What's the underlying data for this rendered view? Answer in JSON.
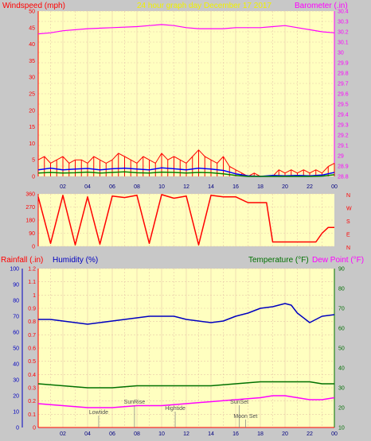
{
  "header": {
    "windspeed_label": "Windspeed (mph)",
    "title": "24 hour graph day   December 17 2017",
    "barometer_label": "Barometer (.in)"
  },
  "footer": {
    "rainfall_label": "Rainfall (.in)",
    "humidity_label": "Humidity (%)",
    "temperature_label": "Temperature (°F)",
    "dewpoint_label": "Dew Point (°F)"
  },
  "events": {
    "lowtide": "Lowtide",
    "sunrise": "SunRise",
    "hightide": "Hightide",
    "sunset": "SunSet",
    "moonset": "Moon Set"
  },
  "colors": {
    "panel_bg": "#ffffc0",
    "grid": "#e8c8a8",
    "windspeed": "#ff0000",
    "wind_avg": "#0000ff",
    "wind_low": "#008000",
    "barometer": "#ff00ff",
    "direction": "#ff0000",
    "humidity": "#0000c0",
    "temperature": "#007000",
    "dewpoint": "#ff00ff",
    "yellow_title": "#f0f000"
  },
  "chart_data": [
    {
      "type": "line",
      "panel": "wind_barometer",
      "x_ticks": [
        "02",
        "04",
        "06",
        "08",
        "10",
        "12",
        "14",
        "16",
        "18",
        "20",
        "22",
        "00"
      ],
      "y_left": {
        "label": "Windspeed (mph)",
        "ylim": [
          0,
          50
        ],
        "ticks": [
          0,
          5,
          10,
          15,
          20,
          25,
          30,
          35,
          40,
          45,
          50
        ]
      },
      "y_right": {
        "label": "Barometer (.in)",
        "ylim": [
          28.8,
          30.4
        ],
        "ticks": [
          "28.8",
          "28.9",
          "29",
          "29.1",
          "29.2",
          "29.3",
          "29.4",
          "29.5",
          "29.6",
          "29.7",
          "29.8",
          "29.9",
          "30",
          "30.1",
          "30.2",
          "30.3",
          "30.4"
        ]
      },
      "barometer": {
        "name": "Barometer",
        "x": [
          0,
          1,
          2,
          4,
          6,
          8,
          9,
          10,
          11,
          12,
          13,
          14,
          15,
          16,
          17,
          18,
          19,
          20,
          21,
          22,
          23,
          24
        ],
        "values": [
          30.18,
          30.19,
          30.21,
          30.23,
          30.24,
          30.25,
          30.26,
          30.27,
          30.26,
          30.24,
          30.23,
          30.23,
          30.23,
          30.24,
          30.24,
          30.24,
          30.25,
          30.26,
          30.24,
          30.22,
          30.2,
          30.19
        ]
      },
      "windspeed_gust": {
        "name": "Gust",
        "x": [
          0,
          0.5,
          1,
          1.5,
          2,
          2.5,
          3,
          3.5,
          4,
          4.5,
          5,
          5.5,
          6,
          6.5,
          7,
          7.5,
          8,
          8.5,
          9,
          9.5,
          10,
          10.5,
          11,
          11.5,
          12,
          12.5,
          13,
          13.5,
          14,
          14.5,
          15,
          15.5,
          16,
          16.5,
          17,
          17.5,
          18,
          18.5,
          19,
          19.5,
          20,
          20.5,
          21,
          21.5,
          22,
          22.5,
          23,
          23.5,
          24
        ],
        "values": [
          5,
          6,
          4,
          5,
          6,
          4,
          5,
          5,
          4,
          6,
          5,
          4,
          5,
          7,
          6,
          5,
          4,
          6,
          5,
          4,
          7,
          5,
          6,
          5,
          4,
          6,
          8,
          6,
          5,
          4,
          6,
          3,
          2,
          1,
          0,
          1,
          0,
          0,
          0,
          2,
          1,
          2,
          1,
          2,
          1,
          2,
          1,
          3,
          4
        ]
      },
      "windspeed_avg": {
        "name": "Average",
        "x": [
          0,
          1,
          2,
          3,
          4,
          5,
          6,
          7,
          8,
          9,
          10,
          11,
          12,
          13,
          14,
          15,
          16,
          17,
          18,
          19,
          20,
          21,
          22,
          23,
          24
        ],
        "values": [
          2,
          2.5,
          2,
          2.2,
          2.4,
          2,
          2.3,
          2.5,
          2.2,
          2,
          2.6,
          2.3,
          2,
          2.5,
          2.2,
          1.8,
          0.8,
          0.2,
          0,
          0.3,
          0.2,
          0.3,
          0.2,
          0.4,
          1.2
        ]
      },
      "windspeed_low": {
        "name": "Low",
        "x": [
          0,
          1,
          2,
          3,
          4,
          5,
          6,
          7,
          8,
          9,
          10,
          11,
          12,
          13,
          14,
          15,
          16,
          17,
          18,
          19,
          20,
          21,
          22,
          23,
          24
        ],
        "values": [
          1,
          1.2,
          1,
          1.1,
          1.3,
          1,
          1.2,
          1.4,
          1.1,
          1,
          1.3,
          1.2,
          1,
          1.2,
          1.1,
          0.8,
          0.3,
          0,
          0,
          0,
          0,
          0,
          0,
          0.1,
          0.5
        ]
      }
    },
    {
      "type": "line",
      "panel": "wind_direction",
      "y_left": {
        "ylim": [
          0,
          360
        ],
        "ticks": [
          0,
          90,
          180,
          270,
          360
        ]
      },
      "y_right_labels": [
        "N",
        "W",
        "S",
        "E",
        "N"
      ],
      "direction": {
        "name": "Direction",
        "x": [
          0,
          1,
          2,
          3,
          4,
          5,
          6,
          7,
          8,
          9,
          10,
          11,
          12,
          13,
          14,
          15,
          16,
          17,
          18,
          18.5,
          19,
          20,
          21,
          22,
          22.5,
          23,
          23.5,
          24
        ],
        "values": [
          340,
          20,
          350,
          10,
          340,
          15,
          345,
          335,
          350,
          20,
          355,
          330,
          345,
          10,
          350,
          340,
          340,
          300,
          300,
          300,
          30,
          30,
          30,
          30,
          30,
          90,
          130,
          130
        ]
      }
    },
    {
      "type": "line",
      "panel": "rain_humidity_temperature",
      "x_ticks": [
        "02",
        "04",
        "06",
        "08",
        "10",
        "12",
        "14",
        "16",
        "18",
        "20",
        "22",
        "00"
      ],
      "y_rain": {
        "label": "Rainfall (.in)",
        "ylim": [
          0,
          1.2
        ],
        "ticks": [
          "0",
          "0.1",
          "0.2",
          "0.3",
          "0.4",
          "0.5",
          "0.6",
          "0.7",
          "0.8",
          "0.9",
          "1",
          "1.1",
          "1.2"
        ]
      },
      "y_humidity": {
        "label": "Humidity (%)",
        "ylim": [
          0,
          100
        ],
        "ticks": [
          0,
          10,
          20,
          30,
          40,
          50,
          60,
          70,
          80,
          90,
          100
        ]
      },
      "y_temperature": {
        "label": "Temperature (°F)",
        "ylim": [
          10,
          90
        ],
        "ticks": [
          10,
          20,
          30,
          40,
          50,
          60,
          70,
          80,
          90
        ]
      },
      "humidity": {
        "name": "Humidity",
        "x": [
          0,
          1,
          2,
          3,
          4,
          5,
          6,
          7,
          8,
          9,
          10,
          11,
          12,
          13,
          14,
          15,
          16,
          17,
          18,
          19,
          20,
          20.5,
          21,
          22,
          22.5,
          23,
          24
        ],
        "values": [
          68,
          68,
          67,
          66,
          65,
          66,
          67,
          68,
          69,
          70,
          70,
          70,
          68,
          67,
          66,
          67,
          70,
          72,
          75,
          76,
          78,
          77,
          72,
          66,
          68,
          70,
          71
        ]
      },
      "temperature": {
        "name": "Temperature",
        "x": [
          0,
          2,
          4,
          6,
          8,
          10,
          12,
          14,
          16,
          18,
          19,
          20,
          21,
          22,
          23,
          24
        ],
        "values": [
          32,
          31,
          30,
          30,
          31,
          31,
          31,
          31,
          32,
          33,
          33,
          33,
          33,
          33,
          32,
          32
        ]
      },
      "dewpoint": {
        "name": "Dew Point",
        "x": [
          0,
          2,
          4,
          6,
          8,
          10,
          12,
          14,
          16,
          18,
          19,
          20,
          21,
          22,
          23,
          24
        ],
        "values": [
          22,
          21,
          20,
          20,
          21,
          21,
          22,
          23,
          24,
          25,
          26,
          26,
          25,
          24,
          24,
          25
        ]
      },
      "rainfall": {
        "name": "Rainfall",
        "x": [
          0,
          24
        ],
        "values": [
          0,
          0
        ]
      },
      "events": [
        {
          "label": "Lowtide",
          "x": 4.9
        },
        {
          "label": "SunRise",
          "x": 7.8
        },
        {
          "label": "Hightide",
          "x": 11.1
        },
        {
          "label": "SunSet",
          "x": 16.3
        },
        {
          "label": "Moon Set",
          "x": 16.8
        }
      ]
    }
  ]
}
